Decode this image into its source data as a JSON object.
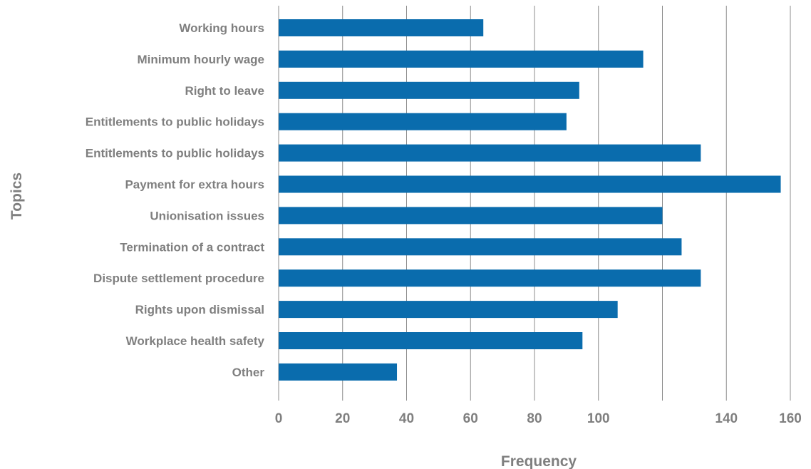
{
  "chart_data": {
    "type": "bar",
    "orientation": "horizontal",
    "title": "",
    "xlabel": "Frequency",
    "ylabel": "Topics",
    "categories": [
      "Working hours",
      "Minimum hourly wage",
      "Right to leave",
      "Entitlements to public holidays",
      "Entitlements to public holidays",
      "Payment for extra hours",
      "Unionisation issues",
      "Termination of a contract",
      "Dispute settlement procedure",
      "Rights upon dismissal",
      "Workplace health safety",
      "Other"
    ],
    "values": [
      64,
      114,
      94,
      90,
      132,
      157,
      120,
      126,
      132,
      106,
      95,
      37
    ],
    "xlim": [
      0,
      160
    ],
    "xticks": [
      0,
      20,
      40,
      60,
      80,
      100,
      120,
      140,
      160
    ],
    "xtick_labels": [
      "0",
      "20",
      "40",
      "60",
      "80",
      "100",
      "",
      "140",
      "160"
    ],
    "grid": "vertical",
    "legend": "none",
    "bar_color": "#0a6cad"
  }
}
